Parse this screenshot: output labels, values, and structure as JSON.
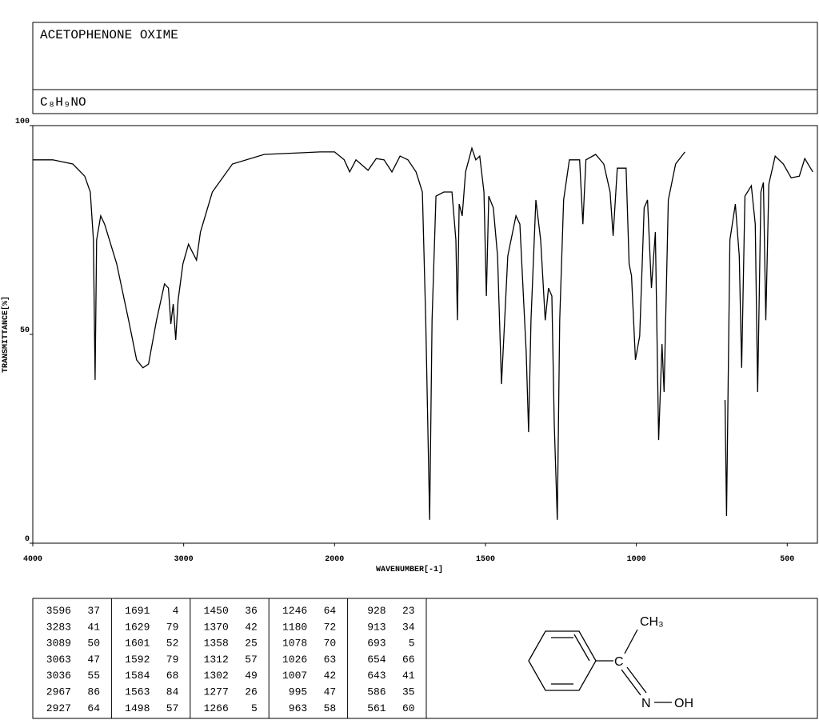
{
  "chart_data": {
    "type": "line",
    "title": "ACETOPHENONE OXIME",
    "formula": "C₈H₉NO",
    "x_label": "WAVENUMBER[-1]",
    "y_label": "TRANSMITTANCE[%]",
    "color": "#000000",
    "xlim": [
      4000,
      400
    ],
    "x_scale_break": 2000,
    "x_scale_ratio": 2,
    "xticks": [
      4000,
      3000,
      2000,
      1500,
      1000,
      500
    ],
    "ylim": [
      0,
      100
    ],
    "yticks": [
      0,
      50,
      100
    ],
    "x": [
      4000,
      3868,
      3735,
      3656,
      3619,
      3598,
      3587,
      3577,
      3550,
      3524,
      3444,
      3365,
      3312,
      3270,
      3233,
      3180,
      3127,
      3101,
      3085,
      3069,
      3053,
      3037,
      3005,
      2968,
      2942,
      2915,
      2889,
      2810,
      2677,
      2466,
      2095,
      2000,
      1968,
      1950,
      1929,
      1889,
      1862,
      1836,
      1810,
      1783,
      1757,
      1730,
      1709,
      1698,
      1685,
      1677,
      1664,
      1638,
      1611,
      1598,
      1593,
      1587,
      1577,
      1566,
      1545,
      1532,
      1519,
      1505,
      1497,
      1489,
      1474,
      1460,
      1447,
      1439,
      1426,
      1399,
      1386,
      1373,
      1365,
      1357,
      1349,
      1333,
      1317,
      1302,
      1291,
      1280,
      1272,
      1262,
      1254,
      1241,
      1222,
      1188,
      1177,
      1167,
      1135,
      1108,
      1087,
      1077,
      1063,
      1034,
      1024,
      1016,
      1003,
      989,
      974,
      963,
      950,
      937,
      926,
      915,
      908,
      894,
      870,
      839,
      780,
      706,
      701,
      690,
      672,
      659,
      651,
      640,
      619,
      606,
      598,
      587,
      579,
      571,
      561,
      540,
      513,
      487,
      460,
      442,
      415
    ],
    "values": [
      91.8,
      91.8,
      90.8,
      87.9,
      84.1,
      72.6,
      39.1,
      72.6,
      78.4,
      76.4,
      66.9,
      53.4,
      43.9,
      42.0,
      42.9,
      53.4,
      62.1,
      61.1,
      52.5,
      57.3,
      48.7,
      58.2,
      66.9,
      71.6,
      69.7,
      67.8,
      74.5,
      84.1,
      90.8,
      93.1,
      93.7,
      93.7,
      91.8,
      88.9,
      91.8,
      89.3,
      92.1,
      91.8,
      88.9,
      92.7,
      91.8,
      88.9,
      84.1,
      53.4,
      5.6,
      53.4,
      83.1,
      84.1,
      84.1,
      72.6,
      53.4,
      81.2,
      78.4,
      88.9,
      94.6,
      91.8,
      92.7,
      84.1,
      59.2,
      83.1,
      80.3,
      68.8,
      38.1,
      49.6,
      68.8,
      78.4,
      76.4,
      57.3,
      45.8,
      26.6,
      53.4,
      82.2,
      72.6,
      53.4,
      61.1,
      59.2,
      28.5,
      5.6,
      53.4,
      82.2,
      91.8,
      91.8,
      76.4,
      91.8,
      93.1,
      90.8,
      84.1,
      73.6,
      89.8,
      89.8,
      66.9,
      64.0,
      43.9,
      49.6,
      80.3,
      82.2,
      61.1,
      74.5,
      24.7,
      47.7,
      36.2,
      82.2,
      90.8,
      93.7,
      null,
      34.3,
      6.5,
      72.6,
      81.2,
      68.8,
      42.0,
      83.1,
      85.6,
      76.4,
      36.2,
      84.1,
      86.4,
      53.4,
      86.0,
      92.7,
      90.8,
      87.5,
      87.9,
      92.1,
      88.9
    ]
  },
  "peak_table": {
    "groups": [
      [
        [
          3596,
          37
        ],
        [
          3283,
          41
        ],
        [
          3089,
          50
        ],
        [
          3063,
          47
        ],
        [
          3036,
          55
        ],
        [
          2967,
          86
        ],
        [
          2927,
          64
        ]
      ],
      [
        [
          1691,
          4
        ],
        [
          1629,
          79
        ],
        [
          1601,
          52
        ],
        [
          1592,
          79
        ],
        [
          1584,
          68
        ],
        [
          1563,
          84
        ],
        [
          1498,
          57
        ]
      ],
      [
        [
          1450,
          36
        ],
        [
          1370,
          42
        ],
        [
          1358,
          25
        ],
        [
          1312,
          57
        ],
        [
          1302,
          49
        ],
        [
          1277,
          26
        ],
        [
          1266,
          5
        ]
      ],
      [
        [
          1246,
          64
        ],
        [
          1180,
          72
        ],
        [
          1078,
          70
        ],
        [
          1026,
          63
        ],
        [
          1007,
          42
        ],
        [
          995,
          47
        ],
        [
          963,
          58
        ]
      ],
      [
        [
          928,
          23
        ],
        [
          913,
          34
        ],
        [
          693,
          5
        ],
        [
          654,
          66
        ],
        [
          643,
          41
        ],
        [
          586,
          35
        ],
        [
          561,
          60
        ]
      ]
    ]
  },
  "structure": {
    "methyl": "CH₃",
    "carbon": "C",
    "nitrogen": "N",
    "hydroxyl": "OH"
  }
}
